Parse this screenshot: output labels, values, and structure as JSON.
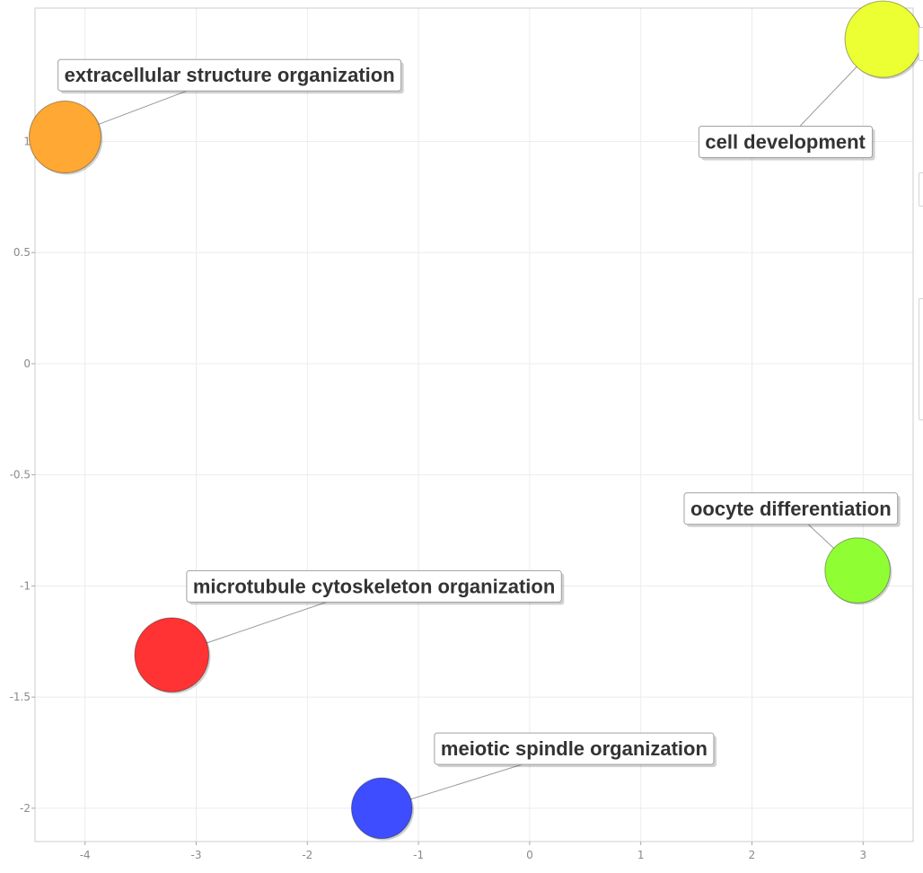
{
  "chart_data": {
    "type": "scatter",
    "title": "",
    "xlabel": "",
    "ylabel": "",
    "xlim": [
      -4.45,
      3.45
    ],
    "ylim": [
      -2.15,
      1.6
    ],
    "x_ticks": [
      -4,
      -3,
      -2,
      -1,
      0,
      1,
      2,
      3
    ],
    "x_tick_labels": [
      "-4",
      "-3",
      "-2",
      "-1",
      "0",
      "1",
      "2",
      "3"
    ],
    "y_ticks": [
      1,
      0.5,
      0,
      -0.5,
      -1,
      -1.5,
      -2
    ],
    "y_tick_labels": [
      "1",
      "0.5",
      "0",
      "-0.5",
      "-1",
      "-1.5",
      "-2"
    ],
    "grid": true,
    "points": [
      {
        "label": "extracellular structure organization",
        "x": -4.18,
        "y": 1.02,
        "size": 3.2,
        "color": "#ffa833",
        "label_x": -2.7,
        "label_y": 1.3
      },
      {
        "label": "cell development",
        "x": 3.18,
        "y": 1.46,
        "size": 3.4,
        "color": "#ecff33",
        "label_x": 2.3,
        "label_y": 1.0
      },
      {
        "label": "oocyte differentiation",
        "x": 2.95,
        "y": -0.93,
        "size": 2.9,
        "color": "#8fff33",
        "label_x": 2.35,
        "label_y": -0.65
      },
      {
        "label": "microtubule cytoskeleton organization",
        "x": -3.22,
        "y": -1.31,
        "size": 3.3,
        "color": "#ff3333",
        "label_x": -1.4,
        "label_y": -1.0
      },
      {
        "label": "meiotic spindle organization",
        "x": -1.33,
        "y": -2.0,
        "size": 2.7,
        "color": "#3d4dff",
        "label_x": 0.4,
        "label_y": -1.73
      }
    ]
  }
}
